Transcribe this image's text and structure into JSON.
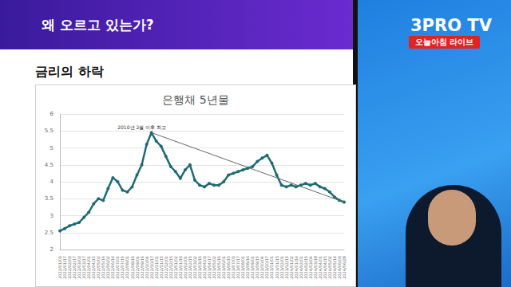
{
  "slide": {
    "title": "왜 오르고 있는가?",
    "heading": "금리의 하락"
  },
  "broadcast": {
    "logo": "3PRO TV",
    "label": "오늘아침 라이브"
  },
  "chart_data": {
    "type": "line",
    "title": "은행채 5년물",
    "color": "#1f6b75",
    "marker": "circle",
    "grid": true,
    "categories": [
      "2022/01/03",
      "2022/01/17",
      "2022/02/03",
      "2022/02/17",
      "2022/03/03",
      "2022/03/17",
      "2022/04/01",
      "2022/04/15",
      "2022/05/02",
      "2022/05/16",
      "2022/06/02",
      "2022/06/16",
      "2022/07/01",
      "2022/07/15",
      "2022/08/01",
      "2022/08/16",
      "2022/09/01",
      "2022/09/16",
      "2022/10/04",
      "2022/10/17",
      "2022/11/01",
      "2022/11/15",
      "2022/12/01",
      "2022/12/15",
      "2023/01/02",
      "2023/01/16",
      "2023/02/01",
      "2023/02/15",
      "2023/03/02",
      "2023/03/16",
      "2023/04/03",
      "2023/04/17",
      "2023/05/02",
      "2023/05/16",
      "2023/06/01",
      "2023/06/15",
      "2023/07/03",
      "2023/07/17",
      "2023/08/01",
      "2023/08/16",
      "2023/09/01",
      "2023/09/15",
      "2023/10/04",
      "2023/10/17",
      "2023/11/01",
      "2023/11/15",
      "2023/12/01",
      "2023/12/15",
      "2024/01/02",
      "2024/01/16",
      "2024/02/01",
      "2024/02/15",
      "2024/03/04",
      "2024/03/18",
      "2024/04/01",
      "2024/04/15",
      "2024/05/02",
      "2024/05/16",
      "2024/06/03",
      "2024/06/28"
    ],
    "values": [
      2.55,
      2.62,
      2.7,
      2.75,
      2.8,
      2.95,
      3.1,
      3.35,
      3.5,
      3.45,
      3.8,
      4.12,
      4.0,
      3.75,
      3.7,
      3.85,
      4.2,
      4.5,
      5.1,
      5.45,
      5.2,
      5.05,
      4.75,
      4.45,
      4.3,
      4.1,
      4.35,
      4.5,
      4.05,
      3.9,
      3.85,
      3.95,
      3.9,
      3.9,
      4.0,
      4.2,
      4.25,
      4.3,
      4.35,
      4.4,
      4.45,
      4.6,
      4.7,
      4.78,
      4.55,
      4.2,
      3.9,
      3.85,
      3.9,
      3.85,
      3.9,
      3.95,
      3.9,
      3.95,
      3.85,
      3.8,
      3.7,
      3.55,
      3.45,
      3.4
    ],
    "ylim": [
      2,
      6
    ],
    "yticks": [
      2,
      2.5,
      3,
      3.5,
      4,
      4.5,
      5,
      5.5,
      6
    ],
    "trend_line": {
      "x": [
        "2022/10/17",
        "2024/06/28"
      ],
      "values": [
        5.45,
        3.4
      ],
      "color": "#666666"
    },
    "annotation": {
      "text": "2010년 2월 이후 최고",
      "x": "2022/10/17",
      "y": 5.45
    }
  }
}
